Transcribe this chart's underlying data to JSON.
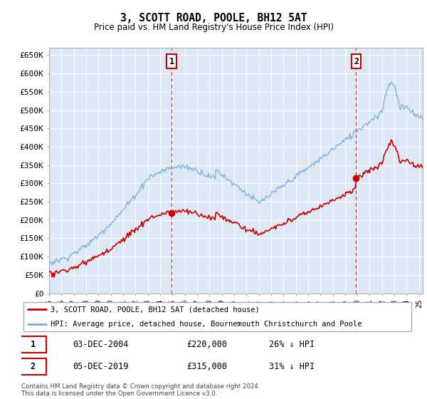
{
  "title": "3, SCOTT ROAD, POOLE, BH12 5AT",
  "subtitle": "Price paid vs. HM Land Registry's House Price Index (HPI)",
  "bg_color": "#dce8f5",
  "red_line_color": "#cc0000",
  "blue_line_color": "#7aaadd",
  "marker1_year": 2004.92,
  "marker1_price": 220000,
  "marker1_date": "03-DEC-2004",
  "marker1_price_str": "£220,000",
  "marker1_hpi": "26% ↓ HPI",
  "marker2_year": 2019.92,
  "marker2_price": 315000,
  "marker2_date": "05-DEC-2019",
  "marker2_price_str": "£315,000",
  "marker2_hpi": "31% ↓ HPI",
  "legend_line1": "3, SCOTT ROAD, POOLE, BH12 5AT (detached house)",
  "legend_line2": "HPI: Average price, detached house, Bournemouth Christchurch and Poole",
  "footnote": "Contains HM Land Registry data © Crown copyright and database right 2024.\nThis data is licensed under the Open Government Licence v3.0.",
  "ylim_min": 0,
  "ylim_max": 670000,
  "yticks": [
    0,
    50000,
    100000,
    150000,
    200000,
    250000,
    300000,
    350000,
    400000,
    450000,
    500000,
    550000,
    600000,
    650000
  ],
  "ytick_labels": [
    "£0",
    "£50K",
    "£100K",
    "£150K",
    "£200K",
    "£250K",
    "£300K",
    "£350K",
    "£400K",
    "£450K",
    "£500K",
    "£550K",
    "£600K",
    "£650K"
  ],
  "start_year": 1995,
  "end_year": 2025
}
